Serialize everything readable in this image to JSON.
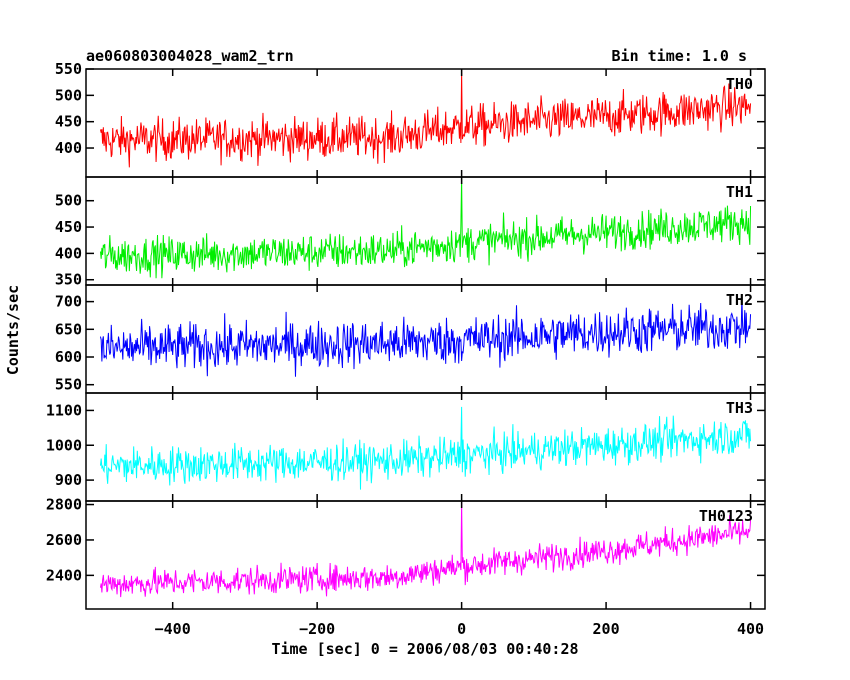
{
  "chart_data": {
    "type": "line",
    "title_left": "ae060803004028_wam2_trn",
    "title_right": "Bin time: 1.0 s",
    "xlabel": "Time [sec] 0 = 2006/08/03 00:40:28",
    "ylabel": "Counts/sec",
    "xlim": [
      -520,
      420
    ],
    "x_ticks": [
      -400,
      -200,
      0,
      200,
      400
    ],
    "x_tick_labels": [
      "−400",
      "−200",
      "0",
      "200",
      "400"
    ],
    "x_start": -500,
    "x_end": 400,
    "bin_time": 1.0,
    "panels": [
      {
        "name": "TH0",
        "color": "#ff0000",
        "ylim": [
          345,
          550
        ],
        "yticks": [
          400,
          450,
          500,
          550
        ],
        "trend": [
          [
            -500,
            415
          ],
          [
            -100,
            420
          ],
          [
            0,
            440
          ],
          [
            200,
            460
          ],
          [
            400,
            480
          ]
        ],
        "noise": 28,
        "spike": {
          "x": 0,
          "y": 550
        }
      },
      {
        "name": "TH1",
        "color": "#00ee00",
        "ylim": [
          340,
          545
        ],
        "yticks": [
          350,
          400,
          450,
          500
        ],
        "trend": [
          [
            -500,
            395
          ],
          [
            -100,
            405
          ],
          [
            0,
            420
          ],
          [
            200,
            440
          ],
          [
            400,
            460
          ]
        ],
        "noise": 25,
        "spike": {
          "x": 0,
          "y": 545
        }
      },
      {
        "name": "TH2",
        "color": "#0000ff",
        "ylim": [
          535,
          730
        ],
        "yticks": [
          550,
          600,
          650,
          700
        ],
        "trend": [
          [
            -500,
            615
          ],
          [
            -100,
            625
          ],
          [
            0,
            630
          ],
          [
            200,
            645
          ],
          [
            400,
            655
          ]
        ],
        "noise": 30,
        "spike": null
      },
      {
        "name": "TH3",
        "color": "#00ffff",
        "ylim": [
          840,
          1150
        ],
        "yticks": [
          900,
          1000,
          1100
        ],
        "trend": [
          [
            -500,
            940
          ],
          [
            -100,
            955
          ],
          [
            0,
            970
          ],
          [
            200,
            1000
          ],
          [
            400,
            1030
          ]
        ],
        "noise": 38,
        "spike": {
          "x": 0,
          "y": 1110
        }
      },
      {
        "name": "TH0123",
        "color": "#ff00ff",
        "ylim": [
          2210,
          2820
        ],
        "yticks": [
          2400,
          2600,
          2800
        ],
        "trend": [
          [
            -500,
            2350
          ],
          [
            -100,
            2390
          ],
          [
            0,
            2450
          ],
          [
            200,
            2540
          ],
          [
            400,
            2650
          ]
        ],
        "noise": 55,
        "spike": {
          "x": 0,
          "y": 2820
        }
      }
    ]
  }
}
